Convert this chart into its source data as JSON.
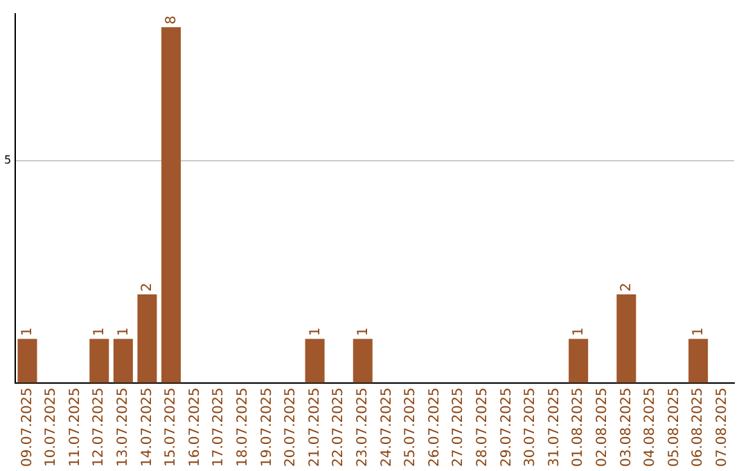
{
  "chart_data": {
    "type": "bar",
    "categories": [
      "09.07.2025",
      "10.07.2025",
      "11.07.2025",
      "12.07.2025",
      "13.07.2025",
      "14.07.2025",
      "15.07.2025",
      "16.07.2025",
      "17.07.2025",
      "18.07.2025",
      "19.07.2025",
      "20.07.2025",
      "21.07.2025",
      "22.07.2025",
      "23.07.2025",
      "24.07.2025",
      "25.07.2025",
      "26.07.2025",
      "27.07.2025",
      "28.07.2025",
      "29.07.2025",
      "30.07.2025",
      "31.07.2025",
      "01.08.2025",
      "02.08.2025",
      "03.08.2025",
      "04.08.2025",
      "05.08.2025",
      "06.08.2025",
      "07.08.2025"
    ],
    "values": [
      1,
      0,
      0,
      1,
      1,
      2,
      8,
      0,
      0,
      0,
      0,
      0,
      1,
      0,
      1,
      0,
      0,
      0,
      0,
      0,
      0,
      0,
      0,
      1,
      0,
      2,
      0,
      0,
      1,
      0
    ],
    "value_labels": [
      "1",
      null,
      null,
      "1",
      "1",
      "2",
      "8",
      null,
      null,
      null,
      null,
      null,
      "1",
      null,
      "1",
      null,
      null,
      null,
      null,
      null,
      null,
      null,
      null,
      "1",
      null,
      "2",
      null,
      null,
      "1",
      null
    ],
    "color": "#a0572b",
    "ylim": [
      0,
      8.3
    ],
    "yticks": [
      {
        "value": 0,
        "label": null
      },
      5
    ],
    "grid": "y",
    "legend": false
  }
}
